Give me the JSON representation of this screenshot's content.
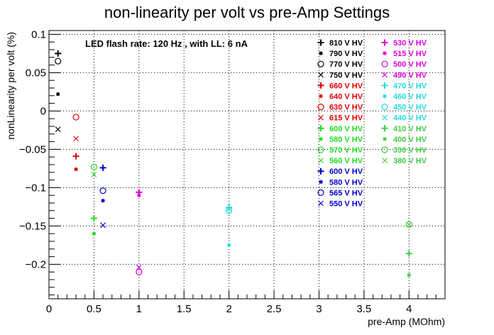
{
  "chart_data": {
    "type": "scatter",
    "title": "non-linearity per volt vs pre-Amp Settings",
    "xlabel": "pre-Amp (MOhm)",
    "ylabel": "nonLinearity per volt (%)",
    "xlim": [
      0,
      4.4
    ],
    "ylim": [
      -0.245,
      0.105
    ],
    "xticks": [
      0,
      0.5,
      1,
      1.5,
      2,
      2.5,
      3,
      3.5,
      4
    ],
    "xtick_labels": [
      "0",
      "0.5",
      "1",
      "1.5",
      "2",
      "2.5",
      "3",
      "3.5",
      "4"
    ],
    "yticks": [
      0.1,
      0.05,
      0,
      -0.05,
      -0.1,
      -0.15,
      -0.2
    ],
    "ytick_labels": [
      "0.1",
      "0.05",
      "0",
      "−0.05",
      "−0.1",
      "−0.15",
      "−0.2"
    ],
    "grid": true,
    "legend_placement": "top-right",
    "annotation": "LED flash rate: 120 Hz , with LL: 6 nA",
    "series": [
      {
        "name": "810 V HV",
        "color": "#000000",
        "marker": "plus",
        "points": [
          [
            0.1,
            0.075
          ]
        ]
      },
      {
        "name": "790 V HV",
        "color": "#000000",
        "marker": "star",
        "points": [
          [
            0.1,
            0.022
          ]
        ]
      },
      {
        "name": "770 V HV",
        "color": "#000000",
        "marker": "circle",
        "points": [
          [
            0.1,
            0.065
          ]
        ]
      },
      {
        "name": "750 V HV",
        "color": "#000000",
        "marker": "cross",
        "points": [
          [
            0.1,
            -0.024
          ]
        ]
      },
      {
        "name": "660 V HV",
        "color": "#e00000",
        "marker": "plus",
        "points": [
          [
            0.3,
            -0.059
          ]
        ]
      },
      {
        "name": "640 V HV",
        "color": "#e00000",
        "marker": "star",
        "points": [
          [
            0.3,
            -0.076
          ]
        ]
      },
      {
        "name": "630 V HV",
        "color": "#e00000",
        "marker": "circle",
        "points": [
          [
            0.3,
            -0.008
          ]
        ]
      },
      {
        "name": "615 V HV",
        "color": "#e00000",
        "marker": "cross",
        "points": [
          [
            0.3,
            -0.036
          ]
        ]
      },
      {
        "name": "600 V HV",
        "color": "#22dd22",
        "marker": "plus",
        "points": [
          [
            0.5,
            -0.14
          ]
        ]
      },
      {
        "name": "580 V HV",
        "color": "#22dd22",
        "marker": "star",
        "points": [
          [
            0.5,
            -0.16
          ]
        ]
      },
      {
        "name": "570 V HV",
        "color": "#22dd22",
        "marker": "circle",
        "points": [
          [
            0.5,
            -0.073
          ]
        ]
      },
      {
        "name": "560 V HV",
        "color": "#22dd22",
        "marker": "cross",
        "points": [
          [
            0.5,
            -0.083
          ]
        ]
      },
      {
        "name": "600 V HV",
        "color": "#0000cc",
        "marker": "plus",
        "points": [
          [
            0.6,
            -0.074
          ]
        ]
      },
      {
        "name": "580 V HV",
        "color": "#0000cc",
        "marker": "star",
        "points": [
          [
            0.6,
            -0.117
          ]
        ]
      },
      {
        "name": "565 V HV",
        "color": "#0000cc",
        "marker": "circle",
        "points": [
          [
            0.6,
            -0.104
          ]
        ]
      },
      {
        "name": "550 V HV",
        "color": "#0000cc",
        "marker": "cross",
        "points": [
          [
            0.6,
            -0.149
          ]
        ]
      },
      {
        "name": "530 V HV",
        "color": "#dd00dd",
        "marker": "plus",
        "points": [
          [
            1.0,
            -0.106
          ]
        ]
      },
      {
        "name": "515 V HV",
        "color": "#dd00dd",
        "marker": "star",
        "points": [
          [
            1.0,
            -0.11
          ]
        ]
      },
      {
        "name": "500 V HV",
        "color": "#dd00dd",
        "marker": "circle",
        "points": [
          [
            1.0,
            -0.21
          ]
        ]
      },
      {
        "name": "490 V HV",
        "color": "#dd00dd",
        "marker": "cross",
        "points": [
          [
            1.0,
            -0.204
          ]
        ]
      },
      {
        "name": "470 V HV",
        "color": "#22dddd",
        "marker": "plus",
        "points": [
          [
            2.0,
            -0.126
          ]
        ]
      },
      {
        "name": "460 V HV",
        "color": "#22dddd",
        "marker": "star",
        "points": [
          [
            2.0,
            -0.175
          ]
        ]
      },
      {
        "name": "450 V HV",
        "color": "#22dddd",
        "marker": "circle",
        "points": [
          [
            2.0,
            -0.13
          ]
        ]
      },
      {
        "name": "440 V HV",
        "color": "#22dddd",
        "marker": "cross",
        "points": [
          [
            2.0,
            -0.128
          ]
        ]
      },
      {
        "name": "410 V HV",
        "color": "#44cc44",
        "marker": "plus",
        "points": [
          [
            4.0,
            -0.186
          ]
        ]
      },
      {
        "name": "400 V HV",
        "color": "#44cc44",
        "marker": "star",
        "points": [
          [
            4.0,
            -0.214
          ]
        ]
      },
      {
        "name": "390 V HV",
        "color": "#44cc44",
        "marker": "circle",
        "points": [
          [
            4.0,
            -0.148
          ]
        ]
      },
      {
        "name": "380 V HV",
        "color": "#44cc44",
        "marker": "cross",
        "points": [
          [
            4.0,
            -0.148
          ]
        ]
      }
    ]
  }
}
